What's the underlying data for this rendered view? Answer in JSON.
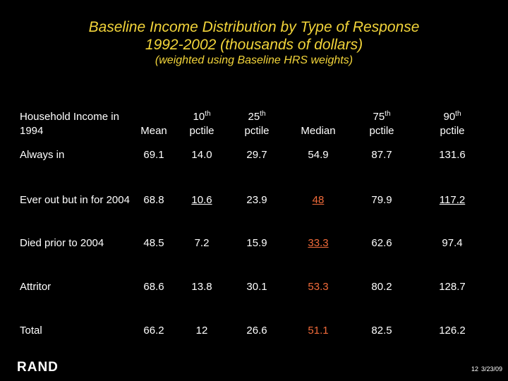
{
  "title_line1": "Baseline Income Distribution by Type of Response",
  "title_line2": "1992-2002 (thousands of dollars)",
  "subtitle": "(weighted using Baseline HRS weights)",
  "table": {
    "headers": [
      {
        "main": "Household Income in 1994",
        "sup": "",
        "after": ""
      },
      {
        "main": "Mean",
        "sup": "",
        "after": ""
      },
      {
        "main": "10",
        "sup": "th",
        "after": "pctile"
      },
      {
        "main": "25",
        "sup": "th",
        "after": "pctile"
      },
      {
        "main": "Median",
        "sup": "",
        "after": ""
      },
      {
        "main": "75",
        "sup": "th",
        "after": "pctile"
      },
      {
        "main": "90",
        "sup": "th",
        "after": "pctile"
      }
    ],
    "rows": [
      {
        "label": "Always in",
        "values": [
          "69.1",
          "14.0",
          "29.7",
          "54.9",
          "87.7",
          "131.6"
        ]
      },
      {
        "label": "Ever out but in for 2004",
        "values": [
          "68.8",
          "10.6",
          "23.9",
          "48",
          "79.9",
          "117.2"
        ]
      },
      {
        "label": "Died prior to 2004",
        "values": [
          "48.5",
          "7.2",
          "15.9",
          "33.3",
          "62.6",
          "97.4"
        ]
      },
      {
        "label": "Attritor",
        "values": [
          "68.6",
          "13.8",
          "30.1",
          "53.3",
          "80.2",
          "128.7"
        ]
      },
      {
        "label": "Total",
        "values": [
          "66.2",
          "12",
          "26.6",
          "51.1",
          "82.5",
          "126.2"
        ]
      }
    ]
  },
  "logo_text": "RAND",
  "footer": {
    "page": "12",
    "date": "3/23/09"
  },
  "colors": {
    "background": "#000000",
    "title": "#f2d43a",
    "highlight": "#f26b3a",
    "text": "#ffffff"
  }
}
